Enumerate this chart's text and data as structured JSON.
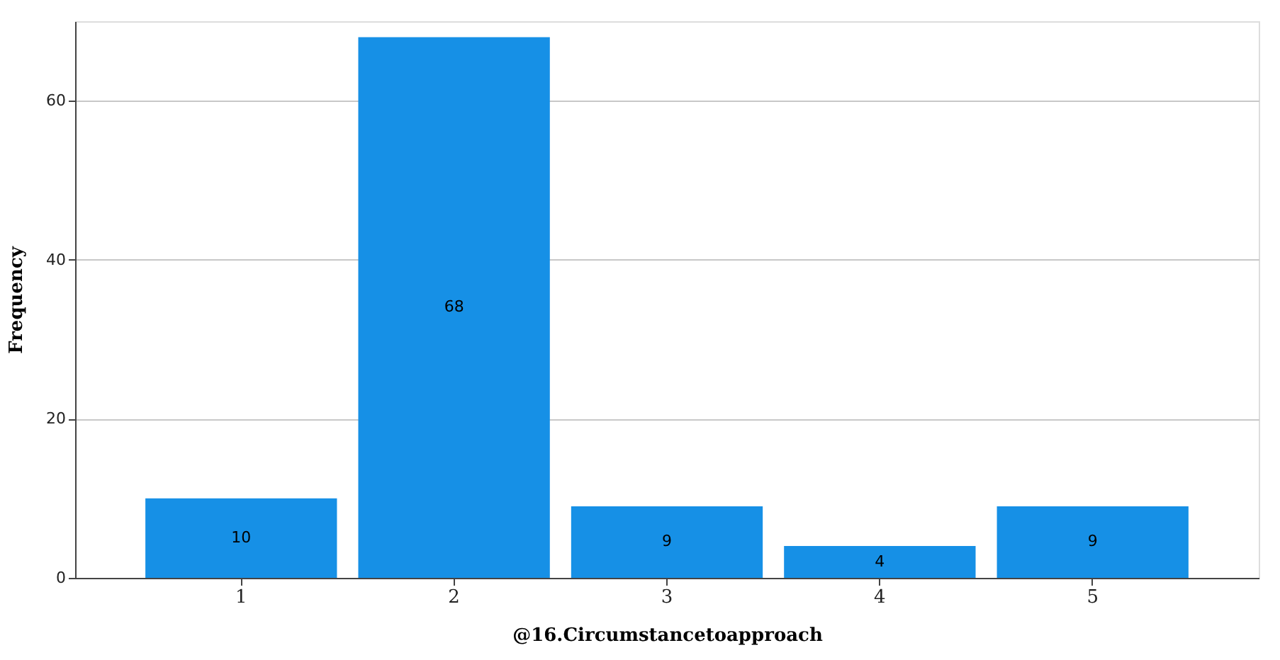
{
  "chart_data": {
    "type": "bar",
    "xlabel": "@16.Circumstancetoapproach",
    "ylabel": "Frequency",
    "categories": [
      "1",
      "2",
      "3",
      "4",
      "5"
    ],
    "values": [
      10,
      68,
      9,
      4,
      9
    ],
    "color": "#1690e6",
    "ylim": [
      0,
      70
    ],
    "yticks": [
      0,
      20,
      40,
      60
    ],
    "grid": "y",
    "data_labels": true
  }
}
